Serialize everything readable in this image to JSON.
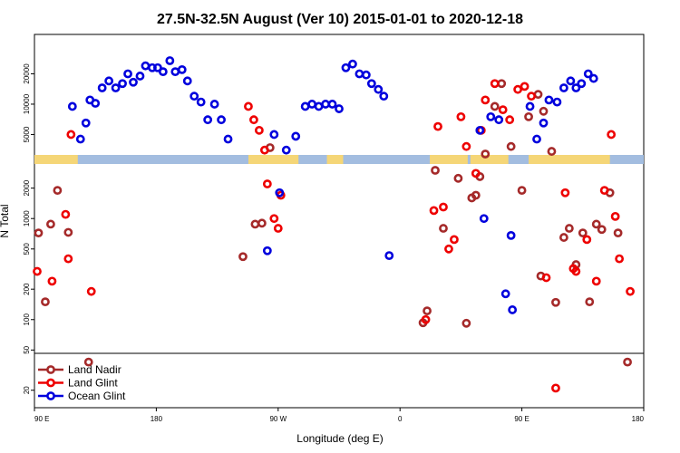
{
  "chart_data": {
    "type": "scatter",
    "title": "27.5N-32.5N August (Ver 10)   2015-01-01 to 2020-12-18",
    "xlabel": "Longitude (deg E)",
    "ylabel": "N Total",
    "x_ticks": [
      "90 E",
      "180",
      "90 W",
      "0",
      "90 E",
      "180"
    ],
    "x_tick_values": [
      90,
      180,
      270,
      360,
      450,
      540
    ],
    "xlim": [
      90,
      540
    ],
    "y_ticks_upper": [
      "5000",
      "10000",
      "20000"
    ],
    "y_ticks_lower": [
      "20",
      "50",
      "100",
      "200",
      "500",
      "1000",
      "2000"
    ],
    "ylim_upper": [
      3200,
      40000
    ],
    "ylim_lower": [
      14,
      3000
    ],
    "legend_position": "bottom-left",
    "band_colors": {
      "ocean": "#a3bde0",
      "land": "#f5d677"
    },
    "land_band_ranges": [
      [
        90,
        122
      ],
      [
        248,
        285
      ],
      [
        306,
        318
      ],
      [
        382,
        410
      ],
      [
        412,
        440
      ],
      [
        455,
        515
      ]
    ],
    "series": [
      {
        "name": "Land Nadir",
        "color": "#a52a2a",
        "points": [
          [
            93,
            720
          ],
          [
            98,
            150
          ],
          [
            102,
            880
          ],
          [
            107,
            1900
          ],
          [
            115,
            730
          ],
          [
            130,
            38
          ],
          [
            244,
            420
          ],
          [
            253,
            880
          ],
          [
            258,
            900
          ],
          [
            264,
            3700
          ],
          [
            377,
            93
          ],
          [
            380,
            122
          ],
          [
            386,
            3000
          ],
          [
            392,
            800
          ],
          [
            403,
            2500
          ],
          [
            409,
            92
          ],
          [
            413,
            1600
          ],
          [
            416,
            1700
          ],
          [
            419,
            2600
          ],
          [
            423,
            3200
          ],
          [
            430,
            9500
          ],
          [
            435,
            16000
          ],
          [
            442,
            3800
          ],
          [
            450,
            1900
          ],
          [
            455,
            7500
          ],
          [
            462,
            12500
          ],
          [
            466,
            8500
          ],
          [
            472,
            3400
          ],
          [
            464,
            270
          ],
          [
            475,
            148
          ],
          [
            481,
            650
          ],
          [
            485,
            800
          ],
          [
            490,
            350
          ],
          [
            495,
            720
          ],
          [
            500,
            150
          ],
          [
            505,
            880
          ],
          [
            509,
            780
          ],
          [
            515,
            1800
          ],
          [
            521,
            720
          ],
          [
            528,
            38
          ]
        ]
      },
      {
        "name": "Land Glint",
        "color": "#ee0000",
        "points": [
          [
            92,
            300
          ],
          [
            103,
            240
          ],
          [
            113,
            1100
          ],
          [
            115,
            400
          ],
          [
            117,
            5000
          ],
          [
            132,
            190
          ],
          [
            248,
            9500
          ],
          [
            252,
            7000
          ],
          [
            256,
            5500
          ],
          [
            260,
            3500
          ],
          [
            262,
            2200
          ],
          [
            267,
            1000
          ],
          [
            270,
            800
          ],
          [
            272,
            1700
          ],
          [
            379,
            100
          ],
          [
            385,
            1200
          ],
          [
            388,
            6000
          ],
          [
            392,
            1300
          ],
          [
            396,
            500
          ],
          [
            400,
            620
          ],
          [
            405,
            7500
          ],
          [
            409,
            3800
          ],
          [
            416,
            2800
          ],
          [
            420,
            5500
          ],
          [
            423,
            11000
          ],
          [
            430,
            16000
          ],
          [
            436,
            8800
          ],
          [
            441,
            7000
          ],
          [
            447,
            14000
          ],
          [
            452,
            15000
          ],
          [
            457,
            12000
          ],
          [
            468,
            260
          ],
          [
            475,
            21
          ],
          [
            482,
            1800
          ],
          [
            488,
            320
          ],
          [
            490,
            300
          ],
          [
            498,
            620
          ],
          [
            505,
            240
          ],
          [
            511,
            1900
          ],
          [
            516,
            5000
          ],
          [
            519,
            1050
          ],
          [
            522,
            400
          ],
          [
            530,
            190
          ]
        ]
      },
      {
        "name": "Ocean Glint",
        "color": "#0000dd",
        "points": [
          [
            118,
            9500
          ],
          [
            124,
            4500
          ],
          [
            128,
            6500
          ],
          [
            131,
            11000
          ],
          [
            135,
            10200
          ],
          [
            140,
            14500
          ],
          [
            145,
            17000
          ],
          [
            150,
            14500
          ],
          [
            155,
            16000
          ],
          [
            159,
            20000
          ],
          [
            163,
            16500
          ],
          [
            168,
            19000
          ],
          [
            172,
            24000
          ],
          [
            177,
            23000
          ],
          [
            181,
            23000
          ],
          [
            185,
            21000
          ],
          [
            190,
            27000
          ],
          [
            194,
            21000
          ],
          [
            199,
            22000
          ],
          [
            203,
            17000
          ],
          [
            208,
            12000
          ],
          [
            213,
            10500
          ],
          [
            218,
            7000
          ],
          [
            223,
            10000
          ],
          [
            228,
            7000
          ],
          [
            233,
            4500
          ],
          [
            262,
            480
          ],
          [
            267,
            5000
          ],
          [
            271,
            1800
          ],
          [
            276,
            3500
          ],
          [
            283,
            4800
          ],
          [
            290,
            9500
          ],
          [
            295,
            10000
          ],
          [
            300,
            9500
          ],
          [
            305,
            10000
          ],
          [
            310,
            10000
          ],
          [
            315,
            9000
          ],
          [
            320,
            23000
          ],
          [
            325,
            25000
          ],
          [
            330,
            20000
          ],
          [
            335,
            19500
          ],
          [
            339,
            16000
          ],
          [
            344,
            14000
          ],
          [
            348,
            12000
          ],
          [
            352,
            430
          ],
          [
            419,
            5500
          ],
          [
            422,
            1000
          ],
          [
            427,
            7500
          ],
          [
            433,
            7000
          ],
          [
            438,
            180
          ],
          [
            443,
            125
          ],
          [
            442,
            680
          ],
          [
            456,
            9500
          ],
          [
            461,
            4500
          ],
          [
            466,
            6500
          ],
          [
            470,
            11000
          ],
          [
            476,
            10500
          ],
          [
            481,
            14500
          ],
          [
            486,
            17000
          ],
          [
            490,
            14500
          ],
          [
            494,
            16000
          ],
          [
            499,
            20000
          ],
          [
            503,
            18000
          ]
        ]
      }
    ]
  }
}
